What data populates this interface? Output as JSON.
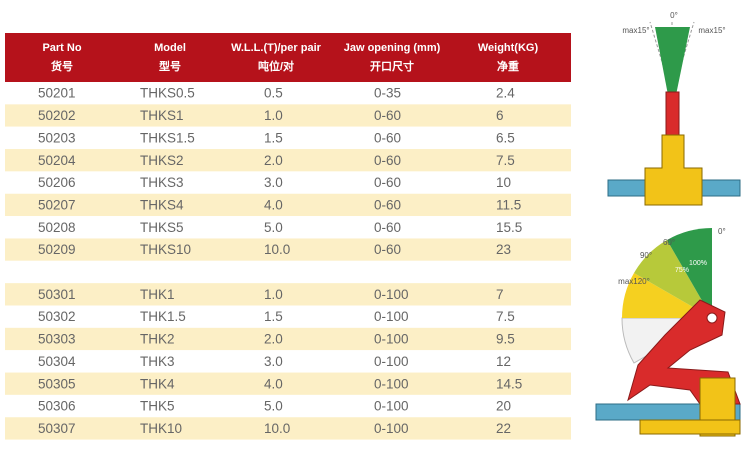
{
  "table": {
    "columns": [
      {
        "en": "Part No",
        "cn": "货号"
      },
      {
        "en": "Model",
        "cn": "型号"
      },
      {
        "en": "W.L.L.(T)/per pair",
        "cn": "吨位/对"
      },
      {
        "en": "Jaw opening (mm)",
        "cn": "开口尺寸"
      },
      {
        "en": "Weight(KG)",
        "cn": "净重"
      }
    ],
    "groups": [
      [
        [
          "50201",
          "THKS0.5",
          "0.5",
          "0-35",
          "2.4"
        ],
        [
          "50202",
          "THKS1",
          "1.0",
          "0-60",
          "6"
        ],
        [
          "50203",
          "THKS1.5",
          "1.5",
          "0-60",
          "6.5"
        ],
        [
          "50204",
          "THKS2",
          "2.0",
          "0-60",
          "7.5"
        ],
        [
          "50206",
          "THKS3",
          "3.0",
          "0-60",
          "10"
        ],
        [
          "50207",
          "THKS4",
          "4.0",
          "0-60",
          "11.5"
        ],
        [
          "50208",
          "THKS5",
          "5.0",
          "0-60",
          "15.5"
        ],
        [
          "50209",
          "THKS10",
          "10.0",
          "0-60",
          "23"
        ]
      ],
      [
        [
          "50301",
          "THK1",
          "1.0",
          "0-100",
          "7"
        ],
        [
          "50302",
          "THK1.5",
          "1.5",
          "0-100",
          "7.5"
        ],
        [
          "50303",
          "THK2",
          "2.0",
          "0-100",
          "9.5"
        ],
        [
          "50304",
          "THK3",
          "3.0",
          "0-100",
          "12"
        ],
        [
          "50305",
          "THK4",
          "4.0",
          "0-100",
          "14.5"
        ],
        [
          "50306",
          "THK5",
          "5.0",
          "0-100",
          "20"
        ],
        [
          "50307",
          "THK10",
          "10.0",
          "0-100",
          "22"
        ]
      ]
    ]
  },
  "diagram_top": {
    "left": "max15°",
    "center": "0°",
    "right": "max15°"
  },
  "diagram_bottom": {
    "a0": "0°",
    "a60": "60°",
    "a90": "90°",
    "a120": "max120°",
    "p75": "75%",
    "p100": "100%"
  }
}
